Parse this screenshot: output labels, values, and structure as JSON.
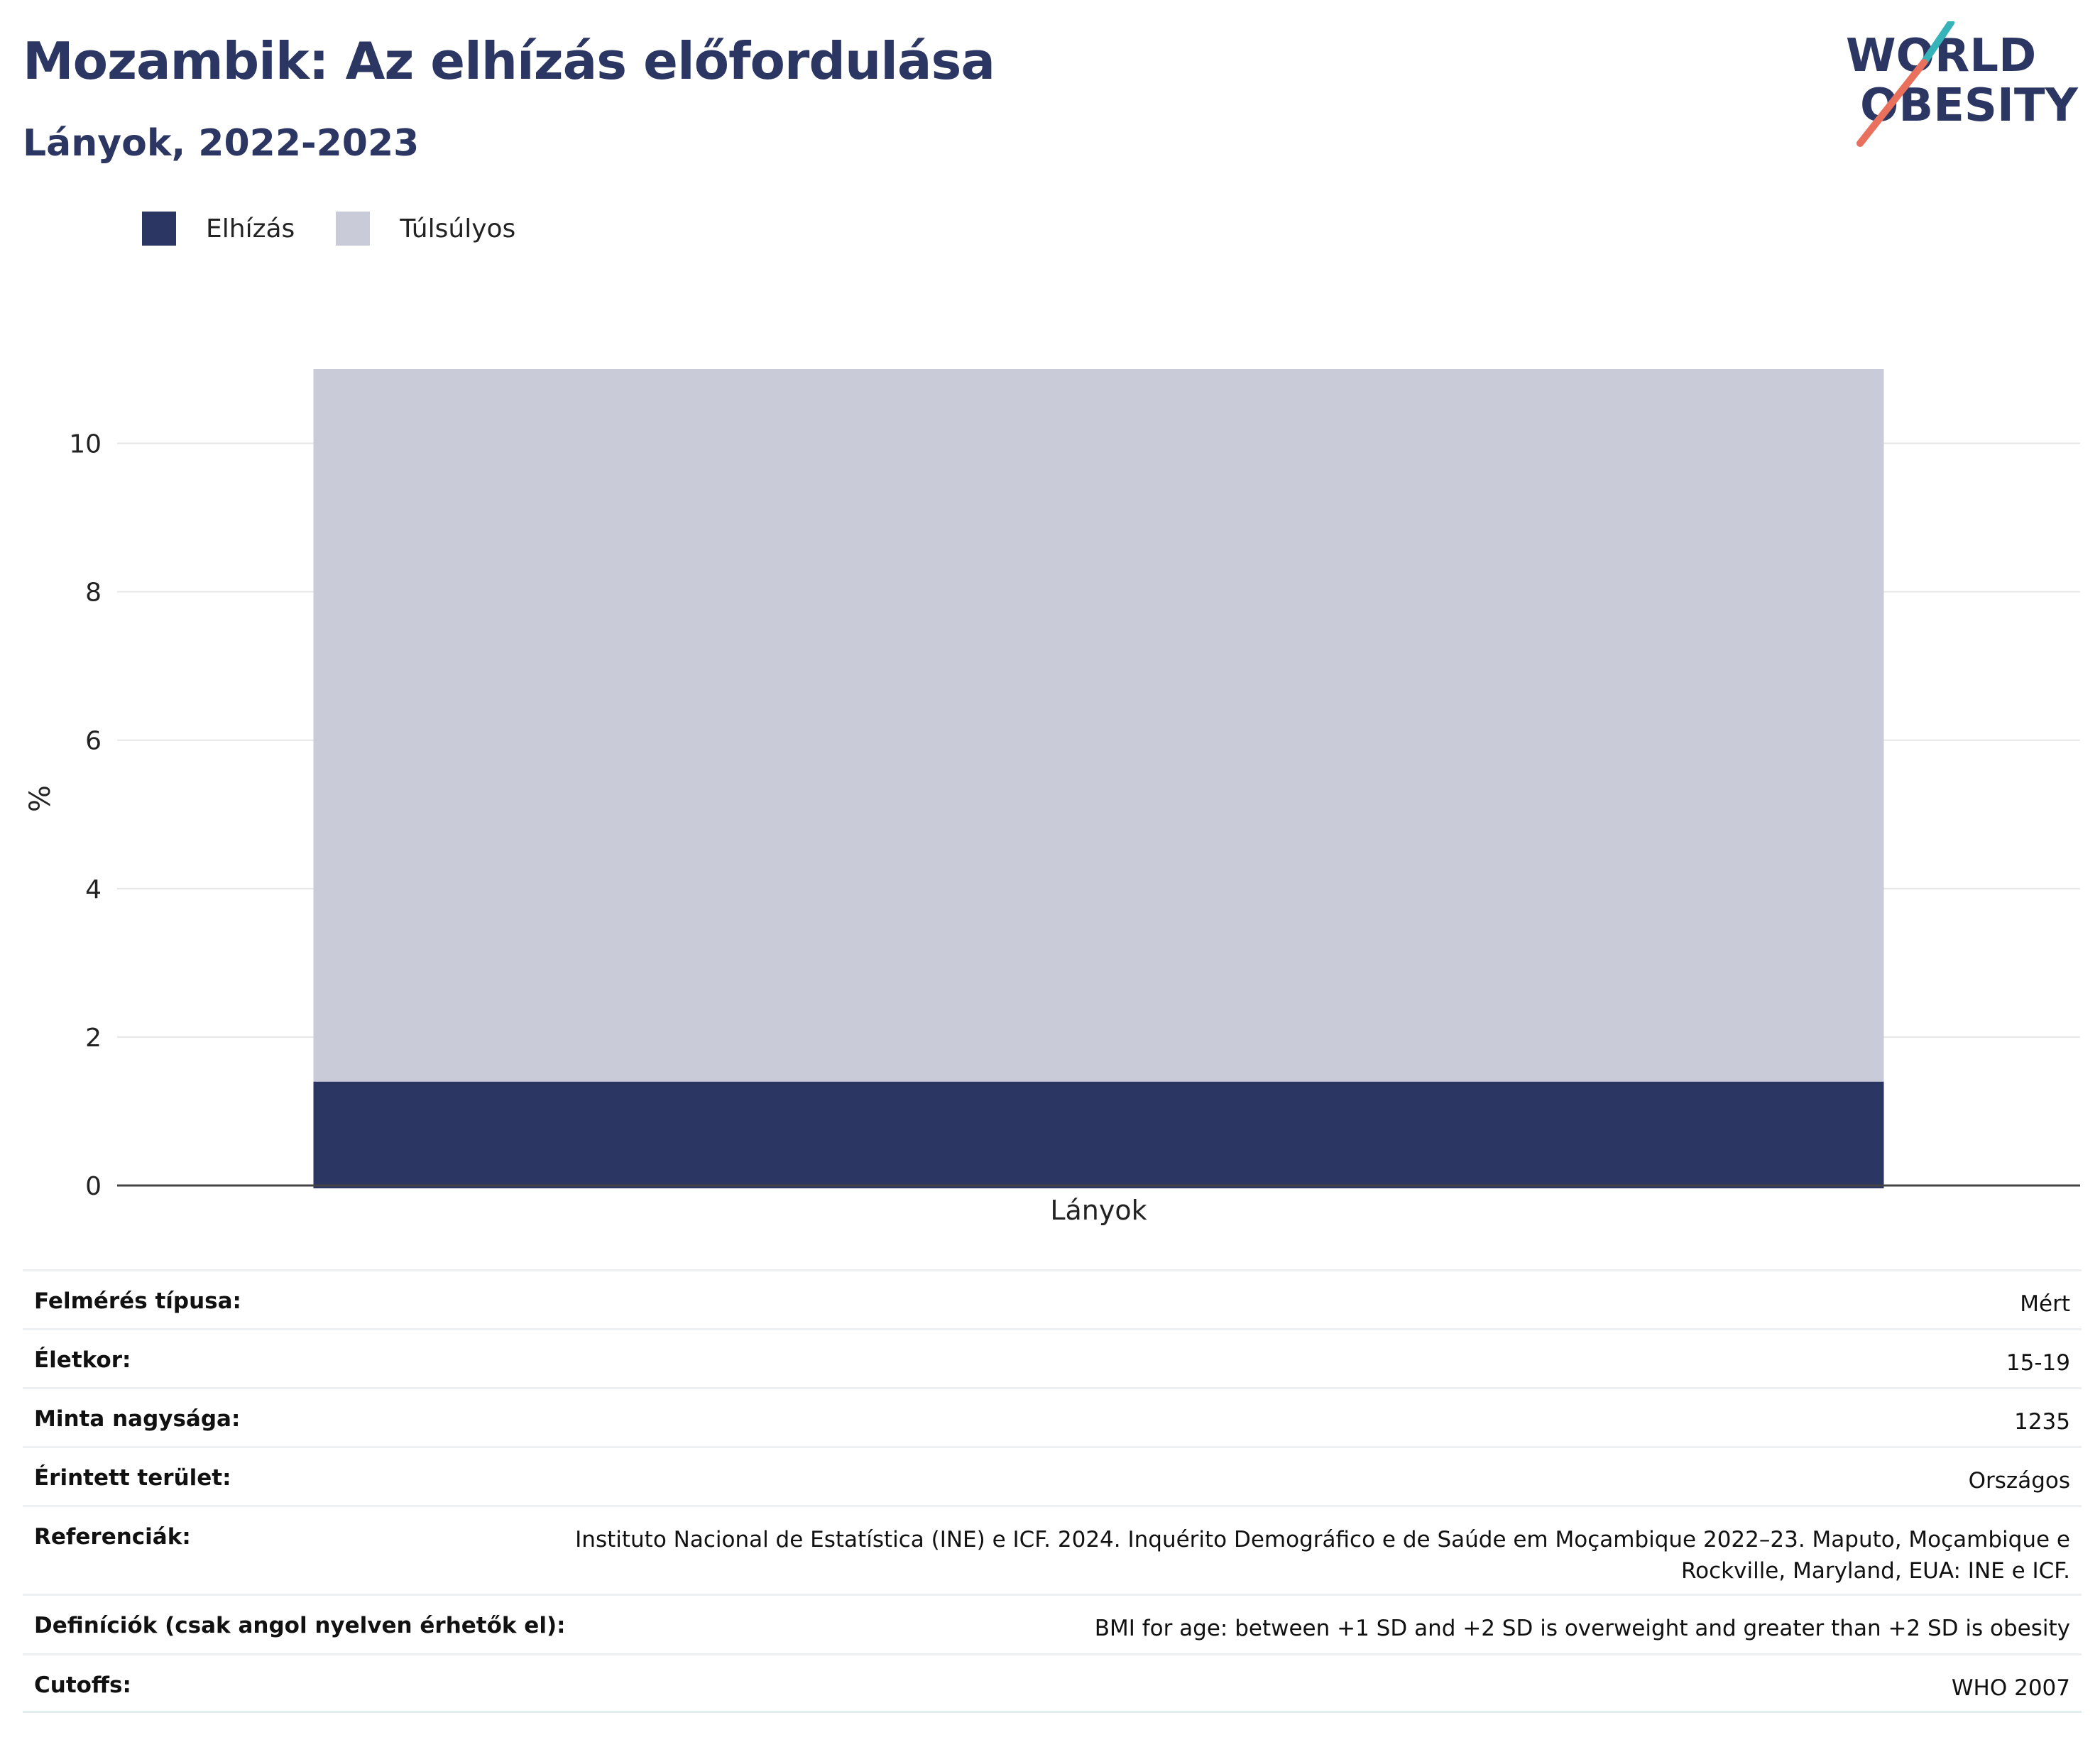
{
  "header": {
    "title": "Mozambik: Az elhízás előfordulása",
    "subtitle": "Lányok, 2022-2023"
  },
  "logo": {
    "line1": "WORLD",
    "line2": "OBESITY",
    "text_color": "#2b3663",
    "accent_teal": "#35b3b9",
    "accent_coral": "#e8705c"
  },
  "legend": {
    "items": [
      {
        "label": "Elhízás",
        "color": "#2b3663"
      },
      {
        "label": "Túlsúlyos",
        "color": "#c9ccd8"
      }
    ]
  },
  "chart_data": {
    "type": "bar",
    "stacked": true,
    "categories": [
      "Lányok"
    ],
    "series": [
      {
        "name": "Elhízás",
        "values": [
          1.4
        ],
        "color": "#2b3663"
      },
      {
        "name": "Túlsúlyos",
        "values": [
          9.6
        ],
        "color": "#c9ccd8"
      }
    ],
    "ylabel": "%",
    "xlabel": "",
    "ylim": [
      0,
      11
    ],
    "yticks": [
      0,
      2,
      4,
      6,
      8,
      10
    ],
    "grid": true,
    "legend_position": "top-left"
  },
  "info": {
    "rows": [
      {
        "key": "Felmérés típusa:",
        "value": "Mért"
      },
      {
        "key": "Életkor:",
        "value": "15-19"
      },
      {
        "key": "Minta nagysága:",
        "value": "1235"
      },
      {
        "key": "Érintett terület:",
        "value": "Országos"
      },
      {
        "key": "Referenciák:",
        "value": "Instituto Nacional de Estatística (INE) e ICF. 2024. Inquérito Demográfico e de Saúde em Moçambique 2022–23. Maputo, Moçambique e Rockville, Maryland, EUA: INE e ICF."
      },
      {
        "key": "Definíciók (csak angol nyelven érhetők el):",
        "value": "BMI for age: between +1 SD and +2 SD is overweight and greater than +2 SD is obesity"
      },
      {
        "key": "Cutoffs:",
        "value": "WHO 2007"
      }
    ]
  }
}
